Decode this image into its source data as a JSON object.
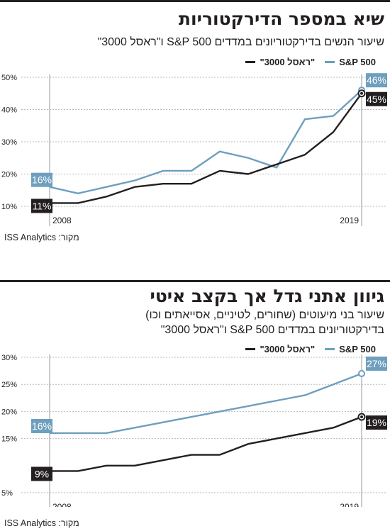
{
  "colors": {
    "sp500": "#6e9fbe",
    "russell": "#231f20",
    "grid": "#b9b9b9",
    "text": "#231f20"
  },
  "panels": [
    {
      "title": "שיא במספר הדירקטוריות",
      "subtitle_lines": [
        "שיעור הנשים בדירקטוריונים במדדים S&P 500 ו\"ראסל 3000\""
      ],
      "legend": {
        "sp500": "S&P 500",
        "russell": "\"ראסל 3000\""
      },
      "source": "מקור: ISS Analytics"
    },
    {
      "title": "גיוון אתני גדל אך בקצב איטי",
      "subtitle_lines": [
        "שיעור בני מיעוטים (שחורים, לטיניים, אסייאתים וכו)",
        "בדירקטוריונים במדדים S&P 500 ו\"ראסל 3000\""
      ],
      "legend": {
        "sp500": "S&P 500",
        "russell": "\"ראסל 3000\""
      },
      "source": "מקור: ISS Analytics"
    }
  ],
  "chart_data": [
    {
      "type": "line",
      "x": [
        2008,
        2009,
        2010,
        2011,
        2012,
        2013,
        2014,
        2015,
        2016,
        2017,
        2018,
        2019
      ],
      "x_tick_labels": [
        "2008",
        "2019"
      ],
      "y_tick_labels": [
        "10%",
        "20%",
        "30%",
        "40%",
        "50%"
      ],
      "ylim": [
        10,
        50
      ],
      "series": [
        {
          "name": "S&P 500",
          "color": "#6e9fbe",
          "values": [
            16,
            14,
            16,
            18,
            21,
            21,
            27,
            25,
            22,
            37,
            38,
            46
          ],
          "label_first": "16%",
          "label_last": "46%"
        },
        {
          "name": "\"ראסל 3000\"",
          "color": "#231f20",
          "values": [
            11,
            11,
            13,
            16,
            17,
            17,
            21,
            20,
            23,
            26,
            33,
            45
          ],
          "label_first": "11%",
          "label_last": "45%"
        }
      ]
    },
    {
      "type": "line",
      "x": [
        2008,
        2009,
        2010,
        2011,
        2012,
        2013,
        2014,
        2015,
        2016,
        2017,
        2018,
        2019
      ],
      "x_tick_labels": [
        "2008",
        "2019"
      ],
      "y_tick_labels": [
        "5%",
        "15%",
        "20%",
        "25%",
        "30%"
      ],
      "ylim": [
        5,
        30
      ],
      "series": [
        {
          "name": "S&P 500",
          "color": "#6e9fbe",
          "values": [
            16,
            16,
            16,
            17,
            18,
            19,
            20,
            21,
            22,
            23,
            25,
            27
          ],
          "label_first": "16%",
          "label_last": "27%"
        },
        {
          "name": "\"ראסל 3000\"",
          "color": "#231f20",
          "values": [
            9,
            9,
            10,
            10,
            11,
            12,
            12,
            14,
            15,
            16,
            17,
            19
          ],
          "label_first": "9%",
          "label_last": "19%"
        }
      ]
    }
  ]
}
